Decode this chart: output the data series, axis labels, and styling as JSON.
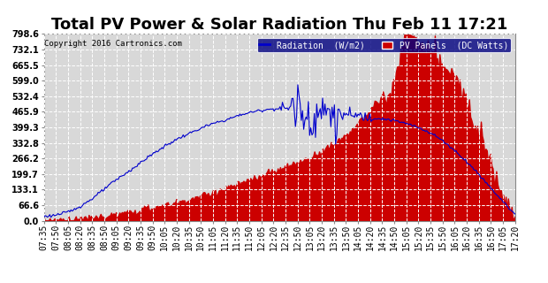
{
  "title": "Total PV Power & Solar Radiation Thu Feb 11 17:21",
  "copyright": "Copyright 2016 Cartronics.com",
  "legend_radiation": "Radiation  (W/m2)",
  "legend_pv": "PV Panels  (DC Watts)",
  "yticks": [
    0.0,
    66.6,
    133.1,
    199.7,
    266.2,
    332.8,
    399.3,
    465.9,
    532.4,
    599.0,
    665.5,
    732.1,
    798.6
  ],
  "ymax": 798.6,
  "ymin": 0.0,
  "bg_color": "#ffffff",
  "plot_bg_color": "#d8d8d8",
  "grid_color": "#ffffff",
  "radiation_color": "#0000cc",
  "pv_fill_color": "#cc0000",
  "title_fontsize": 13,
  "axis_fontsize": 7,
  "xtick_labels": [
    "07:35",
    "07:50",
    "08:05",
    "08:20",
    "08:35",
    "08:50",
    "09:05",
    "09:20",
    "09:35",
    "09:50",
    "10:05",
    "10:20",
    "10:35",
    "10:50",
    "11:05",
    "11:20",
    "11:35",
    "11:50",
    "12:05",
    "12:20",
    "12:35",
    "12:50",
    "13:05",
    "13:20",
    "13:35",
    "13:50",
    "14:05",
    "14:20",
    "14:35",
    "14:50",
    "15:05",
    "15:20",
    "15:35",
    "15:50",
    "16:05",
    "16:20",
    "16:35",
    "16:50",
    "17:05",
    "17:20"
  ],
  "rad_data": [
    18,
    25,
    38,
    62,
    95,
    135,
    175,
    210,
    248,
    285,
    318,
    348,
    372,
    395,
    415,
    430,
    448,
    462,
    472,
    478,
    482,
    485,
    450,
    462,
    458,
    452,
    448,
    442,
    436,
    428,
    415,
    398,
    375,
    342,
    300,
    252,
    198,
    140,
    82,
    28
  ],
  "pv_data": [
    2,
    3,
    5,
    8,
    12,
    18,
    25,
    35,
    45,
    55,
    65,
    78,
    90,
    105,
    120,
    138,
    155,
    172,
    190,
    210,
    228,
    248,
    270,
    298,
    330,
    368,
    415,
    468,
    525,
    590,
    798,
    760,
    720,
    670,
    600,
    510,
    390,
    250,
    110,
    20
  ]
}
